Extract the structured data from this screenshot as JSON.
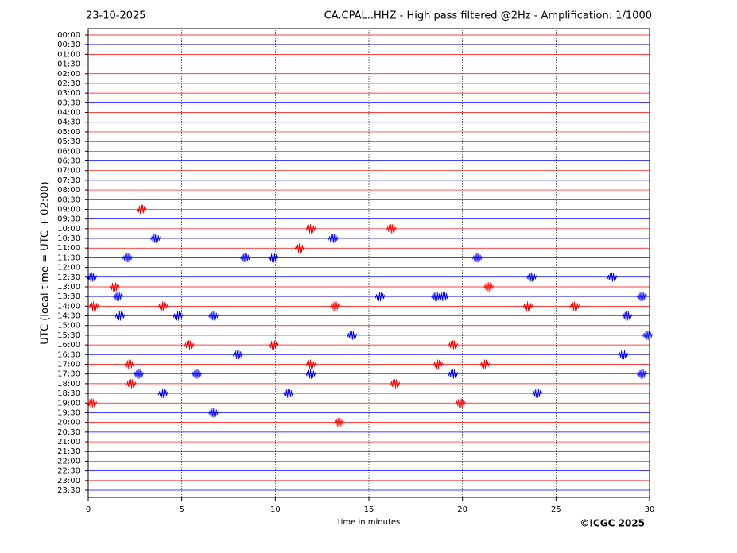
{
  "chart_data": {
    "type": "helicorder",
    "date": "23-10-2025",
    "title": "CA.CPAL..HHZ - High pass filtered @2Hz - Amplification: 1/1000",
    "ylabel": "UTC (local time = UTC + 02:00)",
    "xlabel": "time in minutes",
    "copyright": "©ICGC 2025",
    "categories": [
      "00:00",
      "00:30",
      "01:00",
      "01:30",
      "02:00",
      "02:30",
      "03:00",
      "03:30",
      "04:00",
      "04:30",
      "05:00",
      "05:30",
      "06:00",
      "06:30",
      "07:00",
      "07:30",
      "08:00",
      "08:30",
      "09:00",
      "09:30",
      "10:00",
      "10:30",
      "11:00",
      "11:30",
      "12:00",
      "12:30",
      "13:00",
      "13:30",
      "14:00",
      "14:30",
      "15:00",
      "15:30",
      "16:00",
      "16:30",
      "17:00",
      "17:30",
      "18:00",
      "18:30",
      "19:00",
      "19:30",
      "20:00",
      "20:30",
      "21:00",
      "21:30",
      "22:00",
      "22:30",
      "23:00",
      "23:30"
    ],
    "colors": [
      "#ff0000",
      "#0000ff"
    ],
    "events": [
      [],
      [],
      [],
      [],
      [],
      [],
      [],
      [],
      [],
      [],
      [],
      [],
      [],
      [],
      [],
      [],
      [],
      [],
      [
        2.85
      ],
      [],
      [
        11.9,
        16.2
      ],
      [
        3.6,
        13.1
      ],
      [
        11.3
      ],
      [
        2.1,
        8.4,
        9.9,
        20.8
      ],
      [],
      [
        0.2,
        23.7,
        28.0
      ],
      [
        1.4,
        21.4
      ],
      [
        1.6,
        15.6,
        18.6,
        19.0,
        29.6
      ],
      [
        0.3,
        4.0,
        13.2,
        23.5,
        26.0
      ],
      [
        1.7,
        4.8,
        6.7,
        28.8
      ],
      [],
      [
        14.1,
        29.9
      ],
      [
        5.4,
        9.9,
        19.5
      ],
      [
        8.0,
        28.6
      ],
      [
        2.2,
        11.9,
        18.7,
        21.2
      ],
      [
        2.7,
        5.8,
        11.9,
        19.5,
        29.6
      ],
      [
        2.3,
        16.4
      ],
      [
        4.0,
        10.7,
        24.0
      ],
      [
        0.2,
        19.9
      ],
      [
        6.7
      ],
      [
        13.4
      ],
      [],
      [],
      [],
      [],
      [],
      [],
      []
    ],
    "xlim": [
      0,
      30
    ],
    "xticks": [
      0,
      5,
      10,
      15,
      20,
      25,
      30
    ],
    "grid": true
  }
}
